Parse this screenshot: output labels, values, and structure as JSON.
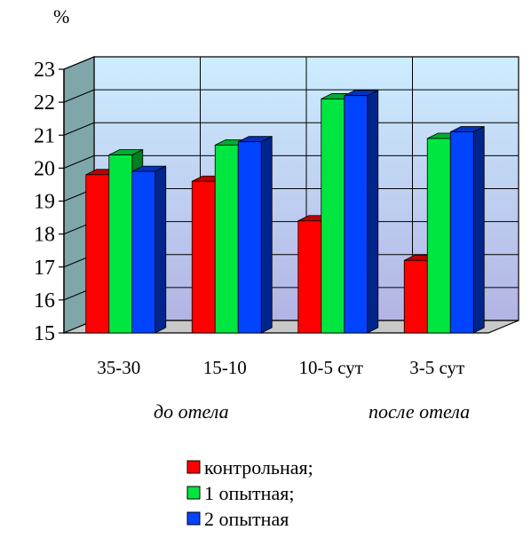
{
  "chart_data": {
    "type": "bar",
    "unit_label": "%",
    "ylim": [
      15,
      23
    ],
    "yticks": [
      15,
      16,
      17,
      18,
      19,
      20,
      21,
      22,
      23
    ],
    "grid": true,
    "legend_position": "bottom",
    "categories": [
      "35-30",
      "15-10",
      "10-5 сут",
      "3-5 сут"
    ],
    "period_labels": [
      "до отела",
      "после отела"
    ],
    "series": [
      {
        "name": "контрольная;",
        "color": "#ff0000",
        "values": [
          19.8,
          19.6,
          18.4,
          17.2
        ]
      },
      {
        "name": "1 опытная;",
        "color": "#00e640",
        "values": [
          20.4,
          20.7,
          22.1,
          20.9
        ]
      },
      {
        "name": "2 опытная",
        "color": "#0044ff",
        "values": [
          19.9,
          20.8,
          22.2,
          21.1
        ]
      }
    ],
    "colors": {
      "wall_top": "#cde9ff",
      "wall_bottom": "#b3b8e6",
      "floor": "#c8c8c8",
      "side_wall": "#7fa6a8"
    }
  }
}
